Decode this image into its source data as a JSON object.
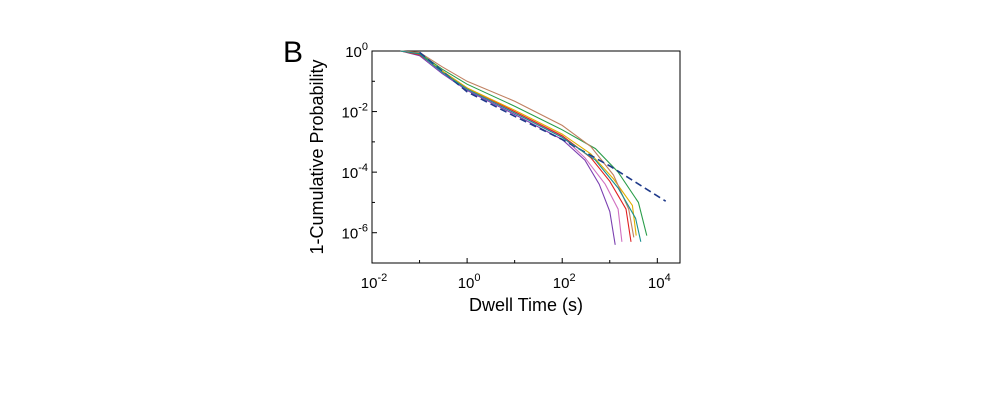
{
  "panel_label": "B",
  "chart_data": {
    "type": "line",
    "title": "",
    "xlabel": "Dwell Time (s)",
    "ylabel": "1-Cumulative Probability",
    "xscale": "log",
    "yscale": "log",
    "xlim": [
      0.01,
      30000
    ],
    "ylim": [
      1e-07,
      1
    ],
    "xticks": [
      {
        "base": "10",
        "exp": "-2"
      },
      {
        "base": "10",
        "exp": "0"
      },
      {
        "base": "10",
        "exp": "2"
      },
      {
        "base": "10",
        "exp": "4"
      }
    ],
    "yticks": [
      {
        "base": "10",
        "exp": "0"
      },
      {
        "base": "10",
        "exp": "-2"
      },
      {
        "base": "10",
        "exp": "-4"
      },
      {
        "base": "10",
        "exp": "-6"
      }
    ],
    "grid": false,
    "legend": "none",
    "series": [
      {
        "color": "#7a3fb0",
        "dashed": false,
        "points": [
          [
            0.04,
            1
          ],
          [
            0.1,
            0.7
          ],
          [
            0.3,
            0.18
          ],
          [
            1,
            0.05
          ],
          [
            10,
            0.008
          ],
          [
            100,
            0.0012
          ],
          [
            300,
            0.00025
          ],
          [
            600,
            4e-05
          ],
          [
            1000,
            5e-06
          ],
          [
            1300,
            4e-07
          ]
        ]
      },
      {
        "color": "#d070c0",
        "dashed": false,
        "points": [
          [
            0.04,
            1
          ],
          [
            0.1,
            0.8
          ],
          [
            0.3,
            0.2
          ],
          [
            1,
            0.055
          ],
          [
            10,
            0.009
          ],
          [
            100,
            0.0015
          ],
          [
            300,
            0.0003
          ],
          [
            800,
            4e-05
          ],
          [
            1500,
            6e-06
          ],
          [
            1800,
            5e-07
          ]
        ]
      },
      {
        "color": "#e02020",
        "dashed": false,
        "points": [
          [
            0.04,
            1
          ],
          [
            0.1,
            0.75
          ],
          [
            0.3,
            0.22
          ],
          [
            1,
            0.06
          ],
          [
            10,
            0.01
          ],
          [
            100,
            0.0016
          ],
          [
            400,
            0.0003
          ],
          [
            1000,
            5e-05
          ],
          [
            2200,
            6e-06
          ],
          [
            2800,
            5e-07
          ]
        ]
      },
      {
        "color": "#e0b000",
        "dashed": false,
        "points": [
          [
            0.04,
            1
          ],
          [
            0.1,
            0.8
          ],
          [
            0.3,
            0.22
          ],
          [
            1,
            0.06
          ],
          [
            10,
            0.011
          ],
          [
            100,
            0.0018
          ],
          [
            400,
            0.0004
          ],
          [
            1200,
            6e-05
          ],
          [
            3000,
            8e-06
          ],
          [
            3600,
            8e-07
          ]
        ]
      },
      {
        "color": "#2a9d4a",
        "dashed": false,
        "points": [
          [
            0.04,
            1
          ],
          [
            0.1,
            0.85
          ],
          [
            0.3,
            0.25
          ],
          [
            1,
            0.08
          ],
          [
            10,
            0.015
          ],
          [
            100,
            0.0025
          ],
          [
            500,
            0.0006
          ],
          [
            1500,
            0.0001
          ],
          [
            4000,
            1e-05
          ],
          [
            6000,
            8e-07
          ]
        ]
      },
      {
        "color": "#c08060",
        "dashed": false,
        "points": [
          [
            0.04,
            1
          ],
          [
            0.1,
            0.9
          ],
          [
            0.3,
            0.3
          ],
          [
            1,
            0.1
          ],
          [
            10,
            0.022
          ],
          [
            100,
            0.0035
          ],
          [
            400,
            0.0007
          ],
          [
            1200,
            8e-05
          ],
          [
            2500,
            6e-06
          ],
          [
            3200,
            7e-07
          ]
        ]
      },
      {
        "color": "#1f3a8a",
        "dashed": true,
        "points": [
          [
            0.1,
            0.9
          ],
          [
            1,
            0.045
          ],
          [
            10,
            0.007
          ],
          [
            100,
            0.0012
          ],
          [
            1000,
            0.00016
          ],
          [
            15000,
            1.1e-05
          ]
        ]
      },
      {
        "color": "#1a8f8f",
        "dashed": false,
        "points": [
          [
            0.04,
            1
          ],
          [
            0.1,
            0.8
          ],
          [
            0.3,
            0.2
          ],
          [
            1,
            0.055
          ],
          [
            10,
            0.009
          ],
          [
            100,
            0.0014
          ],
          [
            500,
            0.00025
          ],
          [
            1500,
            3e-05
          ],
          [
            3500,
            3e-06
          ],
          [
            4500,
            5e-07
          ]
        ]
      }
    ]
  }
}
